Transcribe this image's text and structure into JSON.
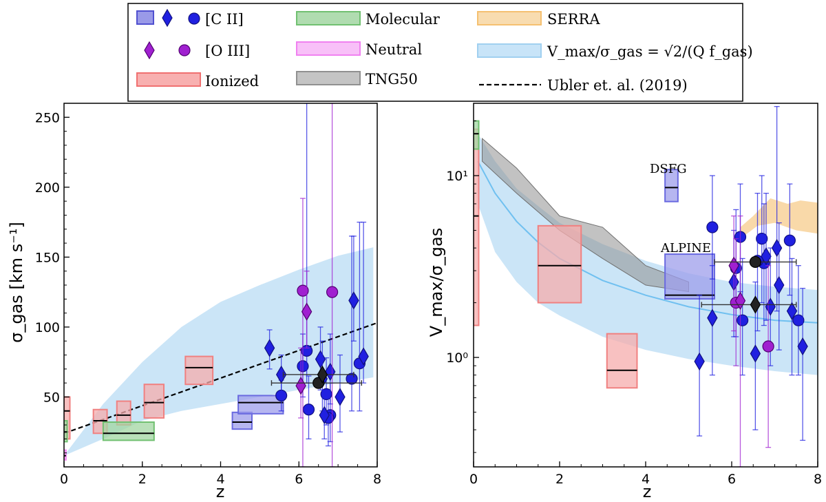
{
  "legend": {
    "cii": "[C II]",
    "oiii": "[O III]",
    "ionized": "Ionized",
    "molecular": "Molecular",
    "neutral": "Neutral",
    "tng50": "TNG50",
    "serra": "SERRA",
    "vmax_model": "V_max/σ_gas = √2/(Q f_gas)",
    "ubler": "Ubler et. al. (2019)"
  },
  "colors": {
    "cii": "#2020e0",
    "oiii": "#a020d0",
    "ionized": "#f08080",
    "molecular": "#70c070",
    "neutral": "#f080f0",
    "tng50": "#909090",
    "serra": "#f5c070",
    "model": "#a0d0f0",
    "black": "#000000"
  },
  "chart_data": [
    {
      "type": "scatter",
      "xlabel": "z",
      "ylabel": "σ_gas [km s⁻¹]",
      "xlim": [
        0,
        8
      ],
      "ylim": [
        0,
        260
      ],
      "xticks": [
        "0",
        "2",
        "4",
        "6",
        "8"
      ],
      "yticks": [
        "50",
        "100",
        "150",
        "200",
        "250"
      ],
      "ionized_boxes": [
        [
          0,
          0.15,
          20,
          50,
          40
        ],
        [
          0.75,
          1.1,
          24,
          41,
          33
        ],
        [
          1.35,
          1.7,
          30,
          47,
          37
        ],
        [
          2.05,
          2.55,
          35,
          59,
          46
        ],
        [
          3.1,
          3.8,
          59,
          79,
          71
        ]
      ],
      "molecular_boxes": [
        [
          0,
          0.08,
          18,
          33,
          25
        ],
        [
          1.0,
          2.3,
          19,
          32,
          24
        ]
      ],
      "neutral_boxes": [
        [
          0,
          0.05,
          5,
          12,
          8
        ]
      ],
      "cii_boxes": [
        [
          4.3,
          4.8,
          27,
          39,
          32
        ],
        [
          4.45,
          5.6,
          38,
          51,
          46
        ]
      ],
      "ubler_line": [
        [
          0,
          24
        ],
        [
          8,
          103
        ]
      ],
      "model_band_upper": [
        [
          0,
          8
        ],
        [
          1,
          45
        ],
        [
          2,
          75
        ],
        [
          3,
          100
        ],
        [
          4,
          118
        ],
        [
          5,
          130
        ],
        [
          6,
          141
        ],
        [
          7,
          151
        ],
        [
          7.9,
          157
        ]
      ],
      "model_band_lower": [
        [
          0,
          8
        ],
        [
          1,
          20
        ],
        [
          2,
          33
        ],
        [
          3,
          40
        ],
        [
          4,
          45
        ],
        [
          5,
          50
        ],
        [
          6,
          55
        ],
        [
          7,
          60
        ],
        [
          7.9,
          64
        ]
      ],
      "cii_points": [
        {
          "m": "o",
          "x": 6.1,
          "y": 72,
          "lo": 50,
          "hi": 95
        },
        {
          "m": "o",
          "x": 6.2,
          "y": 83,
          "lo": 60,
          "hi": 260
        },
        {
          "m": "o",
          "x": 6.25,
          "y": 41,
          "lo": 20,
          "hi": 65
        },
        {
          "m": "o",
          "x": 5.55,
          "y": 51,
          "lo": 40,
          "hi": 62
        },
        {
          "m": "o",
          "x": 6.8,
          "y": 37,
          "lo": 18,
          "hi": 60
        },
        {
          "m": "o",
          "x": 6.7,
          "y": 52,
          "lo": 30,
          "hi": 78
        },
        {
          "m": "o",
          "x": 7.55,
          "y": 74,
          "lo": 40,
          "hi": 175
        },
        {
          "m": "o",
          "x": 7.35,
          "y": 63,
          "lo": 40,
          "hi": 165
        },
        {
          "m": "o",
          "x": 6.75,
          "y": 35,
          "lo": 15,
          "hi": 55
        },
        {
          "m": "d",
          "x": 5.25,
          "y": 85,
          "lo": 70,
          "hi": 98
        },
        {
          "m": "d",
          "x": 5.55,
          "y": 66,
          "lo": 52,
          "hi": 80
        },
        {
          "m": "d",
          "x": 6.55,
          "y": 77,
          "lo": 55,
          "hi": 100
        },
        {
          "m": "d",
          "x": 6.6,
          "y": 63,
          "lo": 40,
          "hi": 90
        },
        {
          "m": "d",
          "x": 6.8,
          "y": 68,
          "lo": 45,
          "hi": 95
        },
        {
          "m": "d",
          "x": 7.05,
          "y": 50,
          "lo": 25,
          "hi": 80
        },
        {
          "m": "d",
          "x": 7.4,
          "y": 119,
          "lo": 90,
          "hi": 165
        },
        {
          "m": "d",
          "x": 7.65,
          "y": 79,
          "lo": 60,
          "hi": 175
        },
        {
          "m": "d",
          "x": 6.65,
          "y": 37,
          "lo": 20,
          "hi": 55
        }
      ],
      "oiii_points": [
        {
          "m": "o",
          "x": 6.1,
          "y": 126,
          "lo": 0,
          "hi": 192
        },
        {
          "m": "o",
          "x": 6.85,
          "y": 125,
          "lo": 0,
          "hi": 260
        },
        {
          "m": "d",
          "x": 6.2,
          "y": 111,
          "lo": 85,
          "hi": 140
        },
        {
          "m": "d",
          "x": 6.05,
          "y": 58,
          "lo": 35,
          "hi": 85
        }
      ],
      "black_points": [
        {
          "m": "o",
          "x": 6.5,
          "y": 60,
          "xlo": 5.3,
          "xhi": 7.6
        },
        {
          "m": "d",
          "x": 6.6,
          "y": 66,
          "xlo": 5.6,
          "xhi": 7.4
        }
      ]
    },
    {
      "type": "scatter",
      "xlabel": "z",
      "ylabel": "V_max/σ_gas",
      "yscale": "log",
      "xlim": [
        0,
        8
      ],
      "ylim": [
        0.25,
        25
      ],
      "xticks": [
        "0",
        "2",
        "4",
        "6",
        "8"
      ],
      "yticks": [
        "10⁰",
        "10¹"
      ],
      "annotations": [
        "DSFG",
        "ALPINE"
      ],
      "ionized_boxes": [
        [
          0,
          0.12,
          1.5,
          18,
          6
        ],
        [
          1.5,
          2.5,
          2.0,
          5.3,
          3.2
        ],
        [
          3.1,
          3.8,
          0.68,
          1.35,
          0.85
        ]
      ],
      "molecular_boxes": [
        [
          0,
          0.12,
          14,
          20,
          17
        ]
      ],
      "cii_boxes": [
        [
          4.45,
          4.75,
          7.2,
          10.8,
          8.6
        ],
        [
          4.45,
          5.6,
          2.1,
          3.7,
          2.2
        ]
      ],
      "tng50_band": [
        [
          0.2,
          16
        ],
        [
          1,
          11
        ],
        [
          2,
          6
        ],
        [
          3,
          5.2
        ],
        [
          4,
          3.2
        ],
        [
          5,
          2.6
        ],
        [
          5,
          2.3
        ],
        [
          4,
          2.5
        ],
        [
          3,
          3.5
        ],
        [
          2,
          5
        ],
        [
          1,
          8
        ],
        [
          0.2,
          12
        ]
      ],
      "serra_band": [
        [
          6.2,
          5.2
        ],
        [
          6.5,
          6
        ],
        [
          6.9,
          7.5
        ],
        [
          7.3,
          7.0
        ],
        [
          7.6,
          7.3
        ],
        [
          8,
          7.1
        ],
        [
          8,
          4.8
        ],
        [
          7.5,
          5.0
        ],
        [
          7.0,
          5.5
        ],
        [
          6.6,
          5.3
        ],
        [
          6.2,
          4.5
        ]
      ],
      "model_curve": [
        [
          0.1,
          12
        ],
        [
          0.5,
          8
        ],
        [
          1,
          5.6
        ],
        [
          1.5,
          4.3
        ],
        [
          2,
          3.5
        ],
        [
          3,
          2.65
        ],
        [
          4,
          2.2
        ],
        [
          5,
          1.9
        ],
        [
          6,
          1.72
        ],
        [
          7,
          1.6
        ],
        [
          8,
          1.55
        ]
      ],
      "model_band_upper": [
        [
          0.1,
          17
        ],
        [
          0.5,
          12
        ],
        [
          1,
          8.5
        ],
        [
          1.5,
          6.8
        ],
        [
          2,
          5.5
        ],
        [
          3,
          4.2
        ],
        [
          4,
          3.4
        ],
        [
          5,
          2.9
        ],
        [
          6,
          2.6
        ],
        [
          7,
          2.45
        ],
        [
          8,
          2.35
        ]
      ],
      "model_band_lower": [
        [
          0.1,
          7
        ],
        [
          0.5,
          3.8
        ],
        [
          1,
          2.6
        ],
        [
          1.5,
          2.0
        ],
        [
          2,
          1.7
        ],
        [
          3,
          1.3
        ],
        [
          4,
          1.1
        ],
        [
          5,
          0.98
        ],
        [
          6,
          0.9
        ],
        [
          7,
          0.84
        ],
        [
          8,
          0.8
        ]
      ],
      "cii_points": [
        {
          "m": "o",
          "x": 5.55,
          "y": 5.2,
          "lo": 2.7,
          "hi": 10
        },
        {
          "m": "o",
          "x": 6.1,
          "y": 3.1,
          "lo": 1.3,
          "hi": 6.5
        },
        {
          "m": "o",
          "x": 6.2,
          "y": 4.6,
          "lo": 2.3,
          "hi": 9
        },
        {
          "m": "o",
          "x": 6.25,
          "y": 1.6,
          "lo": 0.8,
          "hi": 3.5
        },
        {
          "m": "o",
          "x": 6.7,
          "y": 4.5,
          "lo": 2.0,
          "hi": 10
        },
        {
          "m": "o",
          "x": 6.75,
          "y": 3.3,
          "lo": 1.5,
          "hi": 7
        },
        {
          "m": "o",
          "x": 6.6,
          "y": 3.4,
          "lo": 1.4,
          "hi": 8
        },
        {
          "m": "o",
          "x": 7.35,
          "y": 4.4,
          "lo": 2.2,
          "hi": 9
        },
        {
          "m": "o",
          "x": 7.55,
          "y": 1.6,
          "lo": 0.8,
          "hi": 3.2
        },
        {
          "m": "d",
          "x": 5.25,
          "y": 0.95,
          "lo": 0.37,
          "hi": 2.2
        },
        {
          "m": "d",
          "x": 5.55,
          "y": 1.65,
          "lo": 0.8,
          "hi": 3.2
        },
        {
          "m": "d",
          "x": 6.05,
          "y": 2.6,
          "lo": 1.3,
          "hi": 5
        },
        {
          "m": "d",
          "x": 6.55,
          "y": 1.05,
          "lo": 0.4,
          "hi": 2.6
        },
        {
          "m": "d",
          "x": 6.8,
          "y": 3.6,
          "lo": 1.6,
          "hi": 8
        },
        {
          "m": "d",
          "x": 6.9,
          "y": 1.9,
          "lo": 0.9,
          "hi": 4
        },
        {
          "m": "d",
          "x": 7.05,
          "y": 4.0,
          "lo": 1.8,
          "hi": 24
        },
        {
          "m": "d",
          "x": 7.1,
          "y": 2.5,
          "lo": 1.1,
          "hi": 5.5
        },
        {
          "m": "d",
          "x": 7.4,
          "y": 1.8,
          "lo": 0.8,
          "hi": 3.5
        },
        {
          "m": "d",
          "x": 7.65,
          "y": 1.15,
          "lo": 0.35,
          "hi": 2.4
        }
      ],
      "oiii_points": [
        {
          "m": "o",
          "x": 6.1,
          "y": 2.0,
          "lo": 0.9,
          "hi": 4.5
        },
        {
          "m": "o",
          "x": 6.85,
          "y": 1.15,
          "lo": 0.32,
          "hi": 3.2
        },
        {
          "m": "d",
          "x": 6.2,
          "y": 2.05,
          "lo": 0.22,
          "hi": 6
        },
        {
          "m": "d",
          "x": 6.05,
          "y": 3.2,
          "lo": 1.4,
          "hi": 6
        }
      ],
      "black_points": [
        {
          "m": "o",
          "x": 6.55,
          "y": 3.35,
          "xlo": 5.6,
          "xhi": 7.5
        },
        {
          "m": "d",
          "x": 6.55,
          "y": 1.95,
          "xlo": 5.3,
          "xhi": 7.5
        }
      ]
    }
  ]
}
